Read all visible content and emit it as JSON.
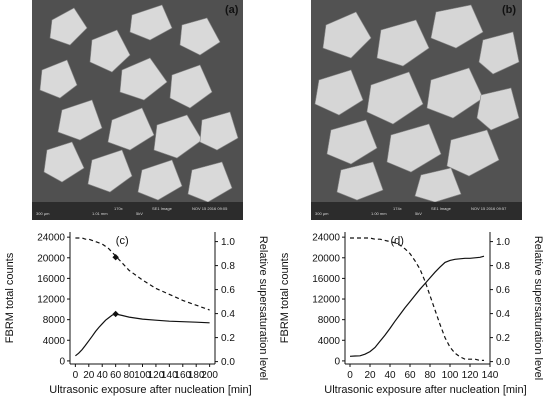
{
  "micrographs": [
    {
      "label": "(a)",
      "scalebar_text": "300 µm",
      "footer": [
        "1.01 mm",
        "170x",
        "5kV",
        "SE1 Image",
        "NOV 15 2016 09:05"
      ]
    },
    {
      "label": "(b)",
      "scalebar_text": "300 µm",
      "footer": [
        "1.00 mm",
        "174x",
        "5kV",
        "SE1 Image",
        "NOV 15 2016 09:57"
      ]
    }
  ],
  "chart_data": [
    {
      "type": "line",
      "label": "(c)",
      "xlabel": "Ultrasonic exposure after nucleation [min]",
      "ylabel": "FBRM total counts",
      "y2label": "Relative supersaturation level",
      "xlim": [
        -8,
        208
      ],
      "ylim": [
        -600,
        25000
      ],
      "y2lim": [
        -0.02,
        1.08
      ],
      "xticks": [
        "0",
        "20",
        "40",
        "60",
        "80",
        "100",
        "120",
        "140",
        "160",
        "180",
        "200"
      ],
      "yticks": [
        "0",
        "4000",
        "8000",
        "12000",
        "16000",
        "20000",
        "24000"
      ],
      "y2ticks": [
        "0.0",
        "0.2",
        "0.4",
        "0.6",
        "0.8",
        "1.0"
      ],
      "series": [
        {
          "style": "solid",
          "axis": "left",
          "x": [
            0,
            5,
            10,
            15,
            20,
            25,
            30,
            35,
            40,
            45,
            50,
            55,
            60,
            70,
            80,
            100,
            120,
            140,
            160,
            180,
            200
          ],
          "y": [
            1000,
            1500,
            2200,
            3000,
            3900,
            4800,
            5700,
            6500,
            7200,
            7900,
            8400,
            8900,
            9100,
            8800,
            8500,
            8100,
            7900,
            7700,
            7600,
            7500,
            7400
          ]
        },
        {
          "style": "dashed",
          "axis": "right",
          "x": [
            0,
            5,
            10,
            15,
            20,
            25,
            30,
            35,
            40,
            45,
            50,
            55,
            60,
            70,
            80,
            100,
            120,
            140,
            160,
            180,
            200
          ],
          "y": [
            1.03,
            1.03,
            1.03,
            1.02,
            1.02,
            1.01,
            1.0,
            0.99,
            0.98,
            0.96,
            0.94,
            0.91,
            0.88,
            0.82,
            0.76,
            0.68,
            0.61,
            0.56,
            0.51,
            0.47,
            0.43
          ]
        }
      ],
      "markers": [
        {
          "axis": "left",
          "x": 60,
          "y": 9100
        },
        {
          "axis": "right",
          "x": 60,
          "y": 0.87
        }
      ]
    },
    {
      "type": "line",
      "label": "(d)",
      "xlabel": "Ultrasonic exposure after nucleation [min]",
      "ylabel": "FBRM total counts",
      "y2label": "Relative supersaturation level",
      "xlim": [
        -5,
        140
      ],
      "ylim": [
        -600,
        25000
      ],
      "y2lim": [
        -0.02,
        1.08
      ],
      "xticks": [
        "0",
        "20",
        "40",
        "60",
        "80",
        "100",
        "120",
        "140"
      ],
      "yticks": [
        "0",
        "4000",
        "8000",
        "12000",
        "16000",
        "20000",
        "24000"
      ],
      "y2ticks": [
        "0.0",
        "0.2",
        "0.4",
        "0.6",
        "0.8",
        "1.0"
      ],
      "series": [
        {
          "style": "solid",
          "axis": "left",
          "x": [
            0,
            5,
            10,
            15,
            20,
            25,
            30,
            35,
            40,
            45,
            50,
            55,
            60,
            65,
            70,
            75,
            80,
            85,
            90,
            95,
            100,
            105,
            110,
            115,
            120,
            125,
            130,
            134
          ],
          "y": [
            900,
            950,
            1000,
            1300,
            1800,
            2600,
            3800,
            5000,
            6300,
            7700,
            9000,
            10300,
            11500,
            12700,
            13900,
            15000,
            16100,
            17200,
            18200,
            19100,
            19500,
            19700,
            19800,
            19900,
            19900,
            20000,
            20100,
            20300
          ]
        },
        {
          "style": "dashed",
          "axis": "right",
          "x": [
            0,
            5,
            10,
            15,
            20,
            25,
            30,
            35,
            40,
            45,
            50,
            55,
            60,
            65,
            70,
            75,
            80,
            85,
            90,
            95,
            100,
            105,
            110,
            115,
            120,
            125,
            130,
            134
          ],
          "y": [
            1.03,
            1.03,
            1.03,
            1.03,
            1.03,
            1.02,
            1.02,
            1.01,
            1.0,
            0.99,
            0.97,
            0.94,
            0.9,
            0.84,
            0.77,
            0.67,
            0.55,
            0.43,
            0.31,
            0.2,
            0.12,
            0.07,
            0.04,
            0.02,
            0.02,
            0.02,
            0.01,
            0.01
          ]
        }
      ]
    }
  ]
}
